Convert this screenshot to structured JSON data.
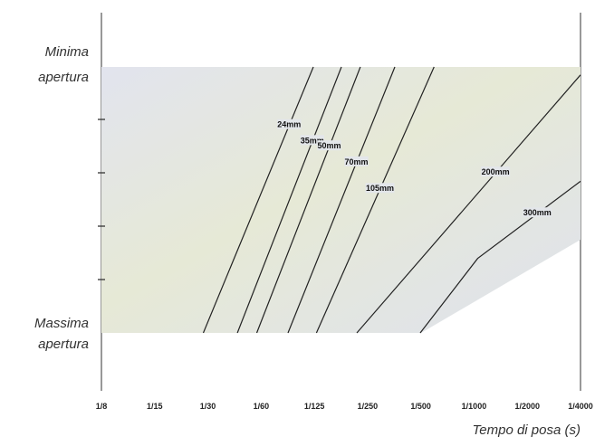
{
  "chart_data": {
    "type": "line",
    "title": "",
    "xlabel": "Tempo di posa (s)",
    "ylabel": "",
    "x_scale": "log",
    "categories": [
      "1/8",
      "1/15",
      "1/30",
      "1/60",
      "1/125",
      "1/250",
      "1/500",
      "1/1000",
      "1/2000",
      "1/4000"
    ],
    "y_labels": {
      "top": [
        "Minima",
        "apertura"
      ],
      "bottom": [
        "Massima",
        "apertura"
      ]
    },
    "band_color": "#dfe3ec",
    "series": [
      {
        "name": "24mm",
        "color": "#222222",
        "points": [
          [
            0.03333,
            0
          ],
          [
            0.008,
            1
          ]
        ]
      },
      {
        "name": "35mm",
        "color": "#222222",
        "points": [
          [
            0.02143,
            0
          ],
          [
            0.00556,
            1
          ]
        ]
      },
      {
        "name": "50mm",
        "color": "#222222",
        "points": [
          [
            0.01667,
            0
          ],
          [
            0.00435,
            1
          ]
        ]
      },
      {
        "name": "70mm",
        "color": "#222222",
        "points": [
          [
            0.01111,
            0
          ],
          [
            0.00278,
            1
          ]
        ]
      },
      {
        "name": "105mm",
        "color": "#222222",
        "points": [
          [
            0.00769,
            0
          ],
          [
            0.00167,
            1
          ]
        ]
      },
      {
        "name": "200mm",
        "color": "#222222",
        "points": [
          [
            0.00455,
            0
          ],
          [
            0.00025,
            0.97
          ]
        ]
      },
      {
        "name": "300mm",
        "color": "#222222",
        "points": [
          [
            0.002,
            0
          ],
          [
            0.00095,
            0.28
          ],
          [
            0.00025,
            0.57
          ]
        ]
      }
    ]
  }
}
